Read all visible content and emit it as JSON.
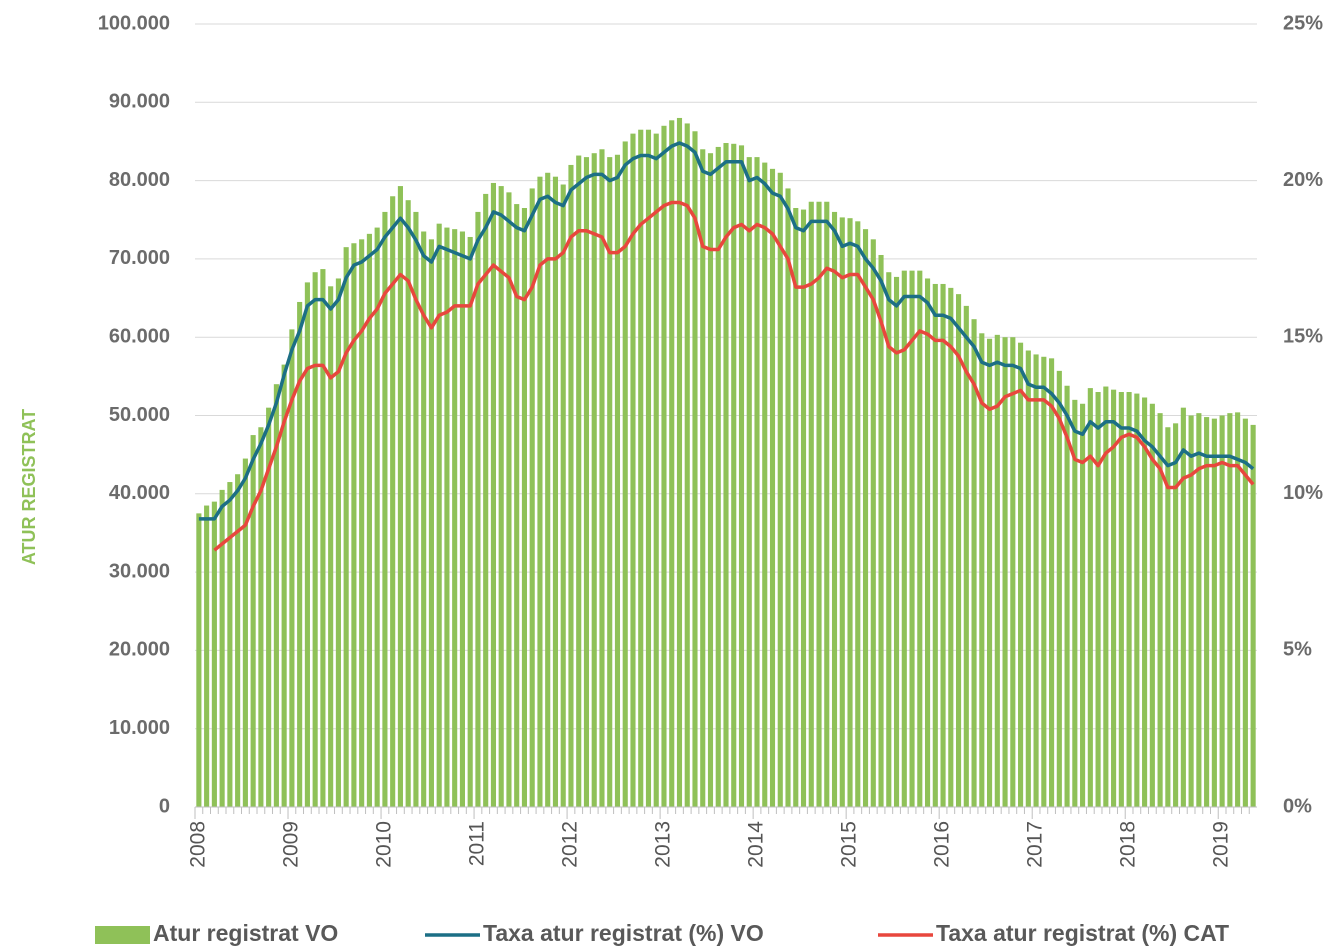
{
  "chart_data": {
    "type": "bar",
    "y_label": "ATUR REGISTRAT",
    "categories": [
      "2008",
      null,
      null,
      null,
      null,
      null,
      null,
      null,
      null,
      null,
      null,
      null,
      "2009",
      null,
      null,
      null,
      null,
      null,
      null,
      null,
      null,
      null,
      null,
      null,
      "2010",
      null,
      null,
      null,
      null,
      null,
      null,
      null,
      null,
      null,
      null,
      null,
      "2011",
      null,
      null,
      null,
      null,
      null,
      null,
      null,
      null,
      null,
      null,
      null,
      "2012",
      null,
      null,
      null,
      null,
      null,
      null,
      null,
      null,
      null,
      null,
      null,
      "2013",
      null,
      null,
      null,
      null,
      null,
      null,
      null,
      null,
      null,
      null,
      null,
      "2014",
      null,
      null,
      null,
      null,
      null,
      null,
      null,
      null,
      null,
      null,
      null,
      "2015",
      null,
      null,
      null,
      null,
      null,
      null,
      null,
      null,
      null,
      null,
      null,
      "2016",
      null,
      null,
      null,
      null,
      null,
      null,
      null,
      null,
      null,
      null,
      null,
      "2017",
      null,
      null,
      null,
      null,
      null,
      null,
      null,
      null,
      null,
      null,
      null,
      "2018",
      null,
      null,
      null,
      null,
      null,
      null,
      null,
      null,
      null,
      null,
      null,
      "2019",
      null,
      null,
      null,
      null
    ],
    "series": [
      {
        "name": "Atur registrat VO",
        "type": "bar",
        "axis": "y",
        "color": "#8fc158",
        "values": [
          37500,
          38500,
          39000,
          40500,
          41500,
          42500,
          44500,
          47500,
          48500,
          51000,
          54000,
          56500,
          61000,
          64500,
          67000,
          68300,
          68700,
          66500,
          67500,
          71500,
          72000,
          72500,
          73200,
          74000,
          76000,
          78000,
          79300,
          77500,
          76000,
          73500,
          72500,
          74500,
          74000,
          73800,
          73500,
          72800,
          76000,
          78300,
          79700,
          79300,
          78500,
          77000,
          76500,
          79000,
          80500,
          81000,
          80500,
          79500,
          82000,
          83200,
          83000,
          83500,
          84000,
          83000,
          83300,
          85000,
          86000,
          86500,
          86500,
          86000,
          87000,
          87700,
          88000,
          87300,
          86300,
          84000,
          83500,
          84300,
          84800,
          84700,
          84500,
          83000,
          83000,
          82300,
          81500,
          81000,
          79000,
          76500,
          76300,
          77300,
          77300,
          77300,
          76000,
          75300,
          75200,
          74800,
          73800,
          72500,
          70500,
          68300,
          67700,
          68500,
          68500,
          68500,
          67500,
          66800,
          66800,
          66300,
          65500,
          64000,
          62300,
          60500,
          59800,
          60300,
          60000,
          60000,
          59300,
          58300,
          57800,
          57500,
          57300,
          55700,
          53800,
          52000,
          51500,
          53500,
          53000,
          53700,
          53300,
          53000,
          53000,
          52800,
          52300,
          51500,
          50300,
          48500,
          49000,
          51000,
          50000,
          50300,
          49800,
          49600,
          50000,
          50300,
          50400,
          49600,
          48800
        ]
      },
      {
        "name": "Taxa atur registrat (%) VO",
        "type": "line",
        "axis": "y2",
        "color": "#1c6f85",
        "values": [
          9.2,
          9.2,
          9.2,
          9.6,
          9.8,
          10.1,
          10.5,
          11.1,
          11.6,
          12.2,
          12.9,
          13.8,
          14.6,
          15.2,
          16.0,
          16.2,
          16.2,
          15.9,
          16.2,
          16.9,
          17.3,
          17.4,
          17.6,
          17.8,
          18.2,
          18.5,
          18.8,
          18.5,
          18.1,
          17.6,
          17.4,
          17.9,
          17.8,
          17.7,
          17.6,
          17.5,
          18.1,
          18.5,
          19.0,
          18.9,
          18.7,
          18.5,
          18.4,
          18.9,
          19.4,
          19.5,
          19.3,
          19.2,
          19.7,
          19.9,
          20.1,
          20.2,
          20.2,
          20.0,
          20.1,
          20.5,
          20.7,
          20.8,
          20.8,
          20.7,
          20.9,
          21.1,
          21.2,
          21.1,
          20.9,
          20.3,
          20.2,
          20.4,
          20.6,
          20.6,
          20.6,
          20.0,
          20.1,
          19.9,
          19.6,
          19.5,
          19.1,
          18.5,
          18.4,
          18.7,
          18.7,
          18.7,
          18.4,
          17.9,
          18.0,
          17.9,
          17.5,
          17.2,
          16.8,
          16.2,
          16.0,
          16.3,
          16.3,
          16.3,
          16.1,
          15.7,
          15.7,
          15.6,
          15.3,
          15.0,
          14.7,
          14.2,
          14.1,
          14.2,
          14.1,
          14.1,
          14.0,
          13.5,
          13.4,
          13.4,
          13.2,
          12.9,
          12.5,
          12.0,
          11.9,
          12.3,
          12.1,
          12.3,
          12.3,
          12.1,
          12.1,
          12.0,
          11.7,
          11.5,
          11.2,
          10.9,
          11.0,
          11.4,
          11.2,
          11.3,
          11.2,
          11.2,
          11.2,
          11.2,
          11.1,
          11.0,
          10.8
        ]
      },
      {
        "name": "Taxa atur registrat (%) CAT",
        "type": "line",
        "axis": "y2",
        "color": "#e8473d",
        "values": [
          null,
          null,
          8.2,
          8.4,
          8.6,
          8.8,
          9.0,
          9.6,
          10.1,
          10.8,
          11.5,
          12.3,
          13.0,
          13.6,
          14.0,
          14.1,
          14.1,
          13.7,
          13.9,
          14.5,
          14.9,
          15.2,
          15.6,
          15.9,
          16.4,
          16.7,
          17.0,
          16.8,
          16.2,
          15.7,
          15.3,
          15.7,
          15.8,
          16.0,
          16.0,
          16.0,
          16.7,
          17.0,
          17.3,
          17.1,
          16.9,
          16.3,
          16.2,
          16.6,
          17.3,
          17.5,
          17.5,
          17.7,
          18.2,
          18.4,
          18.4,
          18.3,
          18.2,
          17.7,
          17.7,
          17.9,
          18.3,
          18.6,
          18.8,
          19.0,
          19.2,
          19.3,
          19.3,
          19.2,
          18.8,
          17.9,
          17.8,
          17.8,
          18.2,
          18.5,
          18.6,
          18.4,
          18.6,
          18.5,
          18.3,
          17.9,
          17.5,
          16.6,
          16.6,
          16.7,
          16.9,
          17.2,
          17.1,
          16.9,
          17.0,
          17.0,
          16.6,
          16.2,
          15.5,
          14.7,
          14.5,
          14.6,
          14.9,
          15.2,
          15.1,
          14.9,
          14.9,
          14.7,
          14.4,
          13.9,
          13.5,
          12.9,
          12.7,
          12.8,
          13.1,
          13.2,
          13.3,
          13.0,
          13.0,
          13.0,
          12.8,
          12.4,
          11.8,
          11.1,
          11.0,
          11.2,
          10.9,
          11.3,
          11.5,
          11.8,
          11.9,
          11.8,
          11.5,
          11.1,
          10.8,
          10.2,
          10.2,
          10.5,
          10.6,
          10.8,
          10.9,
          10.9,
          11.0,
          10.9,
          10.9,
          10.6,
          10.3
        ]
      }
    ],
    "ylim": [
      0,
      100000
    ],
    "yticks": [
      0,
      {
        "value": 10000,
        "label": "10.000"
      },
      {
        "value": 20000,
        "label": "20.000"
      },
      {
        "value": 30000,
        "label": "30.000"
      },
      {
        "value": 40000,
        "label": "40.000"
      },
      {
        "value": 50000,
        "label": "50.000"
      },
      {
        "value": 60000,
        "label": "60.000"
      },
      {
        "value": 70000,
        "label": "70.000"
      },
      {
        "value": 80000,
        "label": "80.000"
      },
      {
        "value": 90000,
        "label": "90.000"
      },
      {
        "value": 100000,
        "label": "100.000"
      }
    ],
    "y2lim": [
      0,
      25
    ],
    "y2ticks": [
      {
        "value": 0,
        "label": "0%"
      },
      {
        "value": 5,
        "label": "5%"
      },
      {
        "value": 10,
        "label": "10%"
      },
      {
        "value": 15,
        "label": "15%"
      },
      {
        "value": 20,
        "label": "20%"
      },
      {
        "value": 25,
        "label": "25%"
      }
    ],
    "grid": true,
    "legend": "bottom"
  }
}
